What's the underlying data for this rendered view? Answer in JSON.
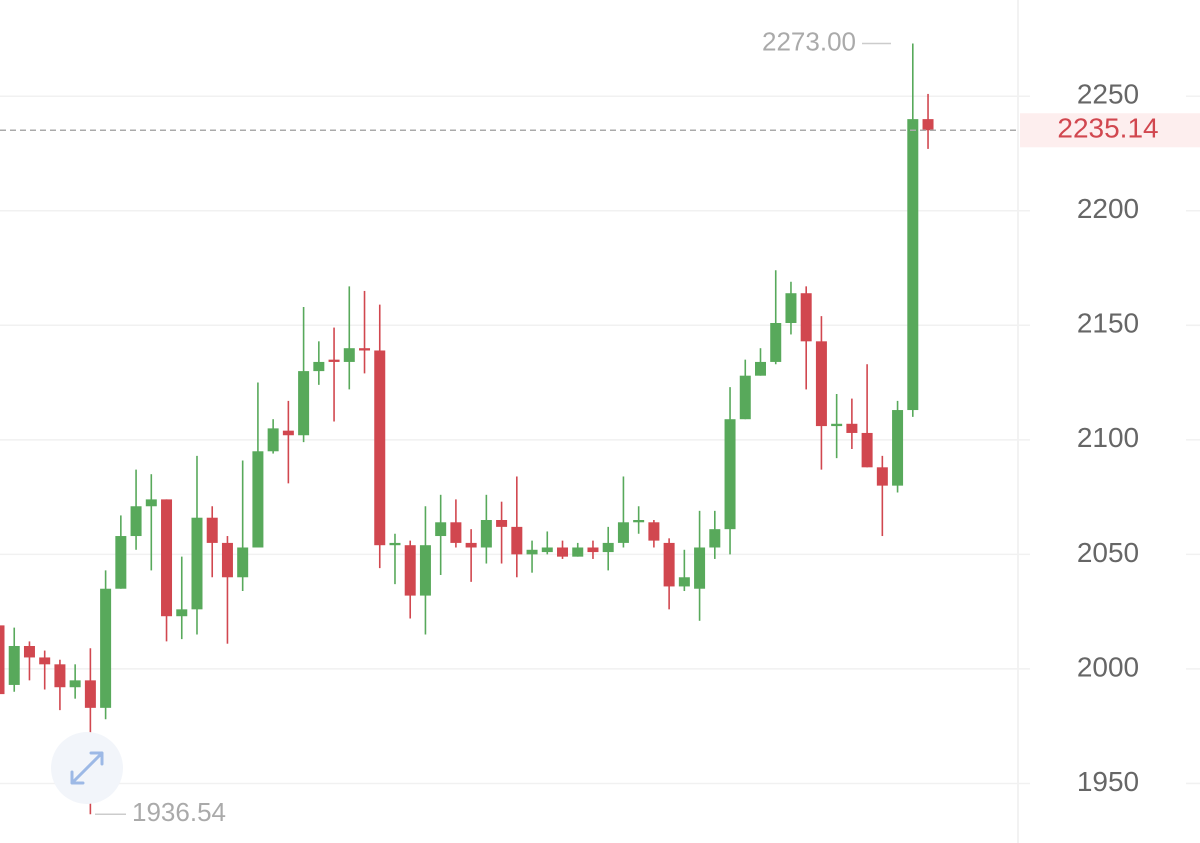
{
  "chart_data": {
    "type": "candlestick",
    "open": [
      2019,
      1993,
      2010,
      2005,
      2002,
      1992,
      1995,
      1983,
      2035,
      2058,
      2071,
      2074,
      2023,
      2026,
      2066,
      2055,
      2040,
      2053,
      2095,
      2104,
      2102,
      2130,
      2135,
      2134,
      2140,
      2139,
      2054,
      2054,
      2032,
      2058,
      2064,
      2055,
      2053,
      2065,
      2062,
      2050,
      2051,
      2053,
      2049,
      2053,
      2051,
      2055,
      2064,
      2064,
      2055,
      2036,
      2035,
      2053,
      2061,
      2109,
      2128,
      2134,
      2151,
      2164,
      2143,
      2106,
      2107,
      2103,
      2088,
      2080,
      2113,
      2240
    ],
    "high": [
      2025,
      2018,
      2012,
      2008,
      2004,
      2002,
      2009,
      2043,
      2067,
      2087,
      2085,
      2074,
      2049,
      2093,
      2071,
      2058,
      2091,
      2125,
      2109,
      2117,
      2158,
      2143,
      2149,
      2167,
      2165,
      2159,
      2059,
      2056,
      2071,
      2076,
      2074,
      2061,
      2076,
      2073,
      2084,
      2056,
      2060,
      2056,
      2055,
      2056,
      2062,
      2084,
      2071,
      2065,
      2057,
      2052,
      2069,
      2069,
      2123,
      2135,
      2140,
      2174,
      2169,
      2167,
      2154,
      2120,
      2118,
      2133,
      2093,
      2117,
      2273,
      2251
    ],
    "low": [
      1987,
      1990,
      1995,
      1991,
      1982,
      1987,
      1936.54,
      1978,
      2035,
      2052,
      2043,
      2012,
      2013,
      2015,
      2040,
      2011,
      2034,
      2053,
      2094,
      2081,
      2099,
      2124,
      2108,
      2122,
      2129,
      2044,
      2037,
      2022,
      2015,
      2041,
      2053,
      2038,
      2046,
      2046,
      2040,
      2042,
      2050,
      2048,
      2049,
      2048,
      2043,
      2053,
      2059,
      2053,
      2026,
      2034,
      2021,
      2048,
      2050,
      2109,
      2128,
      2133,
      2146,
      2122,
      2087,
      2092,
      2096,
      2088,
      2058,
      2077,
      2110,
      2227
    ],
    "close": [
      1989,
      2010,
      2005,
      2002,
      1992,
      1995,
      1983,
      2035,
      2058,
      2071,
      2074,
      2023,
      2026,
      2066,
      2055,
      2040,
      2053,
      2095,
      2105,
      2102,
      2130,
      2134,
      2134,
      2140,
      2139,
      2054,
      2055,
      2032,
      2054,
      2064,
      2055,
      2053,
      2065,
      2062,
      2050,
      2052,
      2053,
      2049,
      2053,
      2051,
      2055,
      2064,
      2065,
      2056,
      2036,
      2040,
      2053,
      2061,
      2109,
      2128,
      2134,
      2151,
      2164,
      2143,
      2106,
      2107,
      2103,
      2088,
      2080,
      2113,
      2240,
      2235.14
    ],
    "up_color": "#58a95b",
    "down_color": "#d1474f",
    "ylim": [
      1924,
      2292
    ],
    "yticks": [
      1950,
      2000,
      2050,
      2100,
      2150,
      2200,
      2250
    ],
    "grid": true,
    "high_label": {
      "value": 2273,
      "label": "2273.00"
    },
    "low_label": {
      "value": 1936.54,
      "label": "1936.54"
    },
    "last_price": {
      "value": 2235.14,
      "label": "2235.14"
    }
  }
}
